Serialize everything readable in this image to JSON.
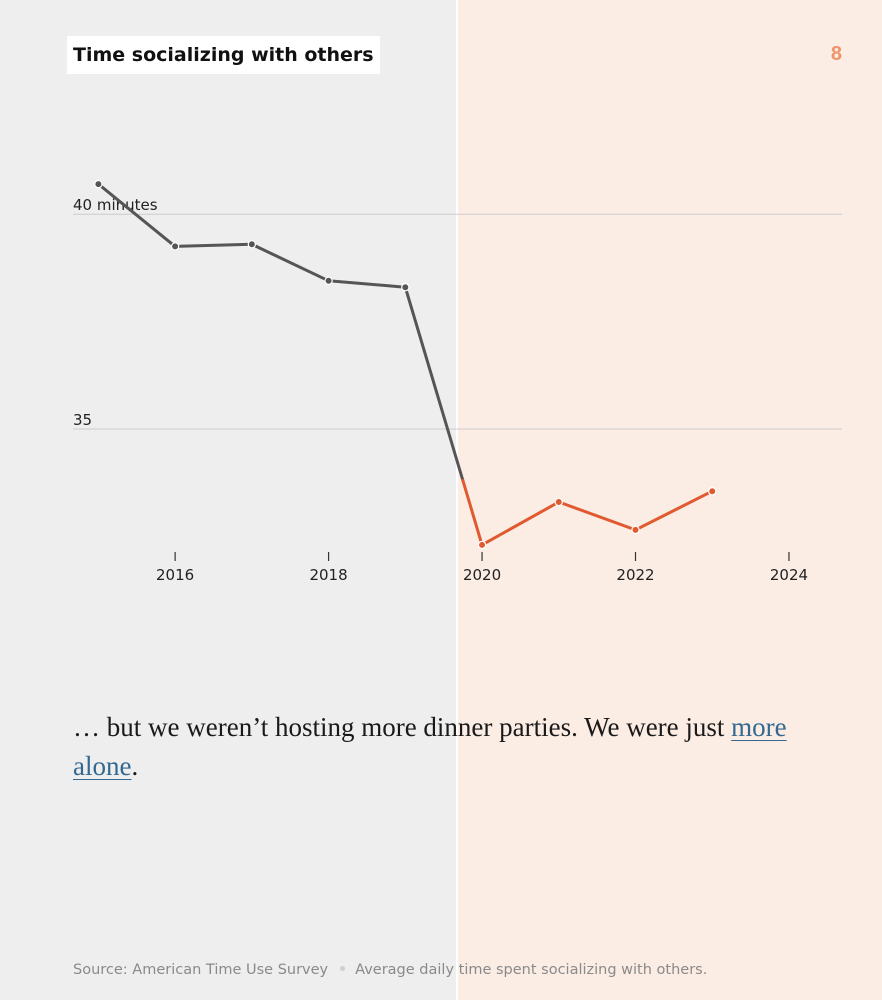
{
  "header": {
    "title": "Time socializing with others",
    "page_number": "8"
  },
  "colors": {
    "pre_pandemic_line": "#555555",
    "pandemic_line": "#e0592f",
    "left_background": "#eeeeee",
    "right_background": "#fbece4",
    "page_number": "#f0936a",
    "link": "#326891"
  },
  "chart_data": {
    "type": "line",
    "title": "Time socializing with others",
    "x": [
      2015,
      2016,
      2017,
      2018,
      2019,
      2020,
      2021,
      2022,
      2023
    ],
    "series": [
      {
        "values": [
          40.7,
          39.25,
          39.3,
          38.45,
          38.3,
          32.3,
          33.3,
          32.65,
          33.55
        ]
      }
    ],
    "highlight_from": 2019.75,
    "xlim": [
      2014.2,
      2024.6
    ],
    "ylim": [
      31.6,
      43.8
    ],
    "xticks": [
      2016,
      2018,
      2020,
      2022,
      2024
    ],
    "xtick_labels": [
      "2016",
      "2018",
      "2020",
      "2022",
      "2024"
    ],
    "gridlines": [
      {
        "value": 40,
        "label": "40 minutes"
      },
      {
        "value": 35,
        "label": "35"
      }
    ],
    "grid": true,
    "legend": "none"
  },
  "narrative": {
    "text_before": "… but we weren’t hosting more dinner parties. We were just ",
    "link_text": "more alone",
    "text_after": "."
  },
  "footer": {
    "source": "Source: American Time Use Survey",
    "note": "Average daily time spent socializing with others."
  }
}
